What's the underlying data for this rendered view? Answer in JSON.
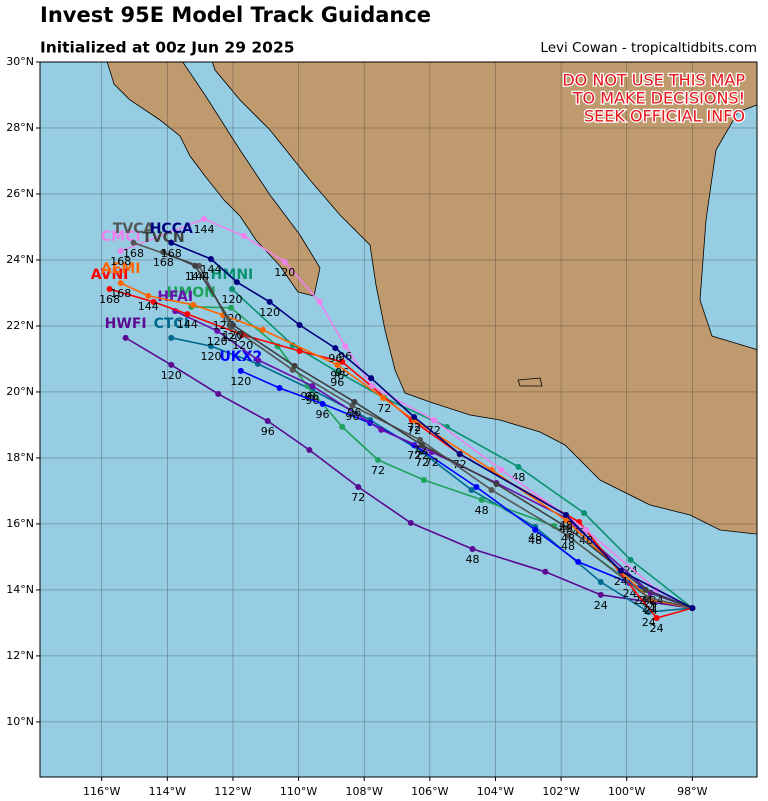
{
  "chart_data": {
    "type": "map",
    "title": "Invest 95E Model Track Guidance",
    "subtitle": "Initialized at 00z Jun 29 2025",
    "credit": "Levi Cowan - tropicaltidbits.com",
    "warning": [
      "DO NOT USE THIS MAP",
      "TO MAKE DECISIONS!",
      "SEEK OFFICIAL INFO"
    ],
    "xlim": [
      -117.88,
      -96.03
    ],
    "ylim": [
      8.33,
      30
    ],
    "grid": true,
    "xticks": [
      {
        "value": -116,
        "label": "116°W"
      },
      {
        "value": -114,
        "label": "114°W"
      },
      {
        "value": -112,
        "label": "112°W"
      },
      {
        "value": -110,
        "label": "110°W"
      },
      {
        "value": -108,
        "label": "108°W"
      },
      {
        "value": -106,
        "label": "106°W"
      },
      {
        "value": -104,
        "label": "104°W"
      },
      {
        "value": -102,
        "label": "102°W"
      },
      {
        "value": -100,
        "label": "100°W"
      },
      {
        "value": -98,
        "label": "98°W"
      }
    ],
    "yticks": [
      {
        "value": 10,
        "label": "10°N"
      },
      {
        "value": 12,
        "label": "12°N"
      },
      {
        "value": 14,
        "label": "14°N"
      },
      {
        "value": 16,
        "label": "16°N"
      },
      {
        "value": 18,
        "label": "18°N"
      },
      {
        "value": 20,
        "label": "20°N"
      },
      {
        "value": 22,
        "label": "22°N"
      },
      {
        "value": 24,
        "label": "24°N"
      },
      {
        "value": 26,
        "label": "26°N"
      },
      {
        "value": 28,
        "label": "28°N"
      },
      {
        "value": 30,
        "label": "30°N"
      }
    ],
    "series": [
      {
        "name": "HWFI",
        "color": "#5b0a91",
        "lon": [
          -98,
          -100.79,
          -102.48,
          -104.7,
          -106.58,
          -108.18,
          -109.67,
          -110.94,
          -112.45,
          -113.88,
          -115.27
        ],
        "lat": [
          13.45,
          13.85,
          14.55,
          15.24,
          16.03,
          17.12,
          18.24,
          19.12,
          19.94,
          20.82,
          21.64
        ],
        "hours": [
          null,
          24,
          null,
          48,
          null,
          72,
          null,
          96,
          null,
          120,
          null
        ]
      },
      {
        "name": "CTCI",
        "color": "#006a8e",
        "lon": [
          -98,
          -99.33,
          -100.79,
          -102.79,
          -104.73,
          -106.24,
          -107.82,
          -109.58,
          -111.24,
          -112.67,
          -113.88
        ],
        "lat": [
          13.45,
          13.33,
          14.24,
          15.91,
          17.03,
          18.18,
          19.15,
          20.06,
          20.85,
          21.39,
          21.64
        ],
        "hours": [
          null,
          24,
          null,
          48,
          null,
          72,
          null,
          96,
          null,
          120,
          null
        ]
      },
      {
        "name": "HMON",
        "color": "#1fa25c",
        "lon": [
          -98,
          -99.58,
          -102.21,
          -104.42,
          -106.18,
          -107.58,
          -108.67,
          -109.73,
          -110.64,
          -112.06,
          -113.27
        ],
        "lat": [
          13.45,
          14.0,
          15.94,
          16.73,
          17.33,
          17.94,
          18.94,
          20.18,
          21.39,
          22.55,
          22.58
        ],
        "hours": [
          null,
          24,
          null,
          48,
          null,
          72,
          null,
          96,
          null,
          120,
          null
        ]
      },
      {
        "name": "HMNI",
        "color": "#0a9270",
        "lon": [
          -98,
          -99.88,
          -101.3,
          -103.3,
          -105.48,
          -107.39,
          -108.82,
          -110.18,
          -112.03
        ],
        "lat": [
          13.45,
          14.91,
          16.33,
          17.73,
          18.94,
          19.82,
          20.61,
          21.42,
          23.12
        ],
        "hours": [
          null,
          24,
          null,
          48,
          null,
          72,
          96,
          null,
          120
        ]
      },
      {
        "name": "UKX2",
        "color": "#0000ff",
        "lon": [
          -98,
          -99.91,
          -101.48,
          -102.79,
          -104.58,
          -106.48,
          -107.82,
          -109.27,
          -110.58,
          -111.76
        ],
        "lat": [
          13.45,
          14.21,
          14.85,
          15.82,
          17.12,
          18.39,
          19.06,
          19.64,
          20.12,
          20.64
        ],
        "hours": [
          null,
          24,
          null,
          48,
          null,
          72,
          null,
          96,
          null,
          120
        ]
      },
      {
        "name": "HFAI",
        "color": "#6a0dad",
        "lon": [
          -98,
          -99.27,
          -101.85,
          -103.97,
          -105.94,
          -107.48,
          -109.58,
          -111.24,
          -112.48,
          -113.76
        ],
        "lat": [
          13.45,
          13.91,
          16.18,
          17.24,
          18.18,
          18.85,
          20.18,
          20.97,
          21.85,
          22.45
        ],
        "hours": [
          null,
          24,
          48,
          null,
          72,
          null,
          96,
          null,
          120,
          null
        ]
      },
      {
        "name": "AVNI",
        "color": "#ff0000",
        "lon": [
          -98,
          -99.09,
          -101.45,
          -105.09,
          -106.55,
          -108.67,
          -109.97,
          -111.7,
          -113.39,
          -114.42,
          -115.76
        ],
        "lat": [
          13.45,
          13.15,
          16.06,
          18.12,
          19.15,
          20.91,
          21.24,
          21.73,
          22.36,
          22.73,
          23.12
        ],
        "hours": [
          null,
          24,
          48,
          72,
          null,
          96,
          null,
          120,
          144,
          null,
          168
        ]
      },
      {
        "name": "AEMI",
        "color": "#ff6600",
        "lon": [
          -98,
          -99.27,
          -101.85,
          -104.12,
          -106.48,
          -107.42,
          -108.82,
          -111.09,
          -112.3,
          -113.21,
          -114.58,
          -115.42
        ],
        "lat": [
          13.45,
          13.7,
          16.12,
          17.64,
          19.15,
          19.82,
          20.82,
          21.88,
          22.33,
          22.64,
          22.91,
          23.3
        ],
        "hours": [
          null,
          24,
          48,
          null,
          72,
          null,
          96,
          null,
          120,
          null,
          144,
          168
        ]
      },
      {
        "name": "CMCI",
        "color": "#ee82ee",
        "lon": [
          -98,
          -99.09,
          -101.24,
          -103.82,
          -105.88,
          -107.76,
          -108.58,
          -109.36,
          -110.42,
          -111.67,
          -112.88,
          -115.42
        ],
        "lat": [
          13.45,
          14.0,
          15.82,
          17.64,
          19.15,
          20.18,
          21.39,
          22.73,
          23.94,
          24.73,
          25.24,
          24.27
        ],
        "hours": [
          null,
          24,
          48,
          null,
          72,
          null,
          96,
          null,
          120,
          null,
          144,
          168
        ]
      },
      {
        "name": "TVCA",
        "color": "#555555",
        "lon": [
          -98,
          -99.33,
          -101.79,
          -104.12,
          -106.3,
          -108.36,
          -110.18,
          -112.06,
          -113.03,
          -115.03
        ],
        "lat": [
          13.45,
          13.76,
          15.64,
          17.03,
          18.55,
          19.58,
          20.67,
          21.97,
          23.82,
          24.52
        ],
        "hours": [
          null,
          24,
          48,
          null,
          72,
          96,
          null,
          120,
          144,
          168
        ]
      },
      {
        "name": "TVCN",
        "color": "#3f3f3f",
        "lon": [
          -98,
          -99.42,
          -101.79,
          -103.97,
          -106.24,
          -108.3,
          -110.12,
          -112.0,
          -113.15,
          -114.12
        ],
        "lat": [
          13.45,
          14.0,
          15.88,
          17.21,
          18.39,
          19.7,
          20.79,
          22.03,
          23.82,
          24.24
        ],
        "hours": [
          null,
          24,
          48,
          null,
          72,
          96,
          null,
          120,
          144,
          168
        ]
      },
      {
        "name": "HCCA",
        "color": "#00007f",
        "lon": [
          -98,
          -100.18,
          -101.85,
          -105.09,
          -106.48,
          -107.79,
          -108.88,
          -109.97,
          -110.88,
          -111.88,
          -112.67,
          -113.88
        ],
        "lat": [
          13.45,
          14.58,
          16.27,
          18.12,
          19.24,
          20.42,
          21.33,
          22.03,
          22.73,
          23.33,
          24.03,
          24.52
        ],
        "hours": [
          null,
          24,
          48,
          null,
          72,
          null,
          96,
          null,
          120,
          null,
          144,
          168
        ]
      }
    ]
  }
}
